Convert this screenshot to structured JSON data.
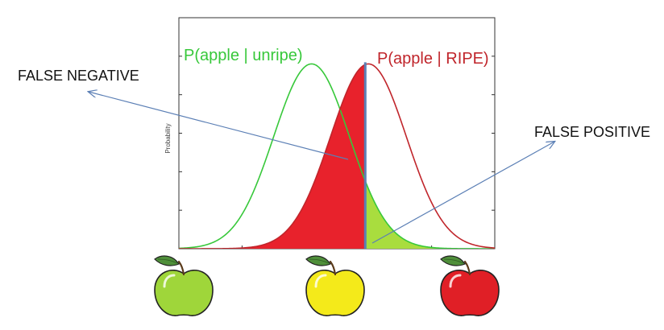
{
  "labels": {
    "unripe_curve": "P(apple | unripe)",
    "ripe_curve": "P(apple | RIPE)",
    "false_negative": "FALSE NEGATIVE",
    "false_positive": "FALSE POSITIVE",
    "y_axis": "Probability"
  },
  "colors": {
    "unripe": "#37c83a",
    "ripe": "#c0252b",
    "false_negative_fill": "#e8222c",
    "false_positive_fill": "#a9dd3e",
    "threshold": "#5b7fb5",
    "arrow": "#5b7fb5",
    "frame": "#333333"
  },
  "chart_data": {
    "type": "area",
    "series": [
      {
        "name": "P(apple | unripe)",
        "mean": 0.42,
        "std": 0.12,
        "peak": 1.0
      },
      {
        "name": "P(apple | RIPE)",
        "mean": 0.6,
        "std": 0.12,
        "peak": 1.0
      }
    ],
    "threshold": 0.59,
    "xlim": [
      0,
      1
    ],
    "ylim": [
      0,
      1.25
    ],
    "ylabel": "Probability",
    "regions": [
      {
        "label": "FALSE NEGATIVE",
        "series": "P(apple | RIPE)",
        "side": "below threshold"
      },
      {
        "label": "FALSE POSITIVE",
        "series": "P(apple | unripe)",
        "side": "above threshold"
      }
    ],
    "grid": false
  },
  "apples": [
    {
      "name": "green-apple",
      "color": "#9fd63a"
    },
    {
      "name": "yellow-apple",
      "color": "#f4ea1a"
    },
    {
      "name": "red-apple",
      "color": "#e01f26"
    }
  ]
}
